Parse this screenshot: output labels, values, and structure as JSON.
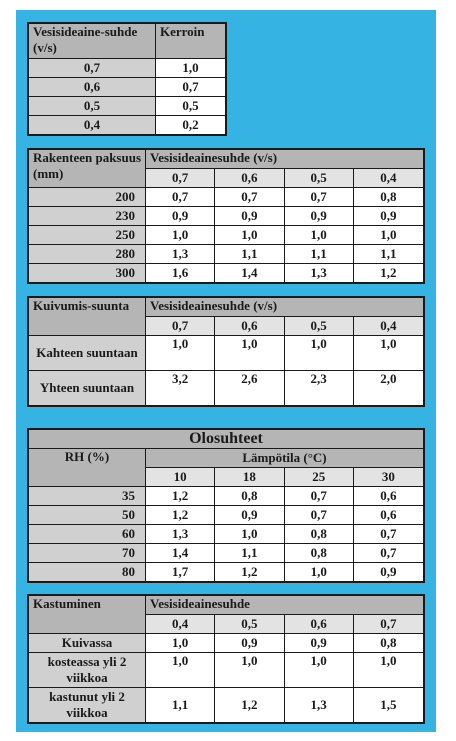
{
  "table1": {
    "header": [
      "Vesisideaine-suhde (v/s)",
      "Kerroin"
    ],
    "rows": [
      [
        "0,7",
        "1,0"
      ],
      [
        "0,6",
        "0,7"
      ],
      [
        "0,5",
        "0,5"
      ],
      [
        "0,4",
        "0,2"
      ]
    ]
  },
  "table2": {
    "row_header": "Rakenteen paksuus (mm)",
    "group_header": "Vesisideainesuhde (v/s)",
    "cols": [
      "0,7",
      "0,6",
      "0,5",
      "0,4"
    ],
    "rows": [
      {
        "label": "200",
        "values": [
          "0,7",
          "0,7",
          "0,7",
          "0,8"
        ]
      },
      {
        "label": "230",
        "values": [
          "0,9",
          "0,9",
          "0,9",
          "0,9"
        ]
      },
      {
        "label": "250",
        "values": [
          "1,0",
          "1,0",
          "1,0",
          "1,0"
        ]
      },
      {
        "label": "280",
        "values": [
          "1,3",
          "1,1",
          "1,1",
          "1,1"
        ]
      },
      {
        "label": "300",
        "values": [
          "1,6",
          "1,4",
          "1,3",
          "1,2"
        ]
      }
    ]
  },
  "table3": {
    "row_header": "Kuivumis-suunta",
    "group_header": "Vesisideainesuhde (v/s)",
    "cols": [
      "0,7",
      "0,6",
      "0,5",
      "0,4"
    ],
    "rows": [
      {
        "label": "Kahteen suuntaan",
        "values": [
          "1,0",
          "1,0",
          "1,0",
          "1,0"
        ]
      },
      {
        "label": "Yhteen suuntaan",
        "values": [
          "3,2",
          "2,6",
          "2,3",
          "2,0"
        ]
      }
    ]
  },
  "table4": {
    "title": "Olosuhteet",
    "row_header": "RH (%)",
    "group_header": "Lämpötila (°C)",
    "cols": [
      "10",
      "18",
      "25",
      "30"
    ],
    "rows": [
      {
        "label": "35",
        "values": [
          "1,2",
          "0,8",
          "0,7",
          "0,6"
        ]
      },
      {
        "label": "50",
        "values": [
          "1,2",
          "0,9",
          "0,7",
          "0,6"
        ]
      },
      {
        "label": "60",
        "values": [
          "1,3",
          "1,0",
          "0,8",
          "0,7"
        ]
      },
      {
        "label": "70",
        "values": [
          "1,4",
          "1,1",
          "0,8",
          "0,7"
        ]
      },
      {
        "label": "80",
        "values": [
          "1,7",
          "1,2",
          "1,0",
          "0,9"
        ]
      }
    ]
  },
  "table5": {
    "row_header": "Kastuminen",
    "group_header": "Vesisideainesuhde",
    "cols": [
      "0,4",
      "0,5",
      "0,6",
      "0,7"
    ],
    "rows": [
      {
        "label": "Kuivassa",
        "values": [
          "1,0",
          "0,9",
          "0,9",
          "0,8"
        ]
      },
      {
        "label": "kosteassa yli 2 viikkoa",
        "values": [
          "1,0",
          "1,0",
          "1,0",
          "1,0"
        ]
      },
      {
        "label": "kastunut yli 2 viikkoa",
        "values": [
          "1,1",
          "1,2",
          "1,3",
          "1,5"
        ]
      }
    ]
  },
  "colors": {
    "background": "#35b3e3",
    "header": "#b5b5b5",
    "label": "#d0d0d0"
  }
}
